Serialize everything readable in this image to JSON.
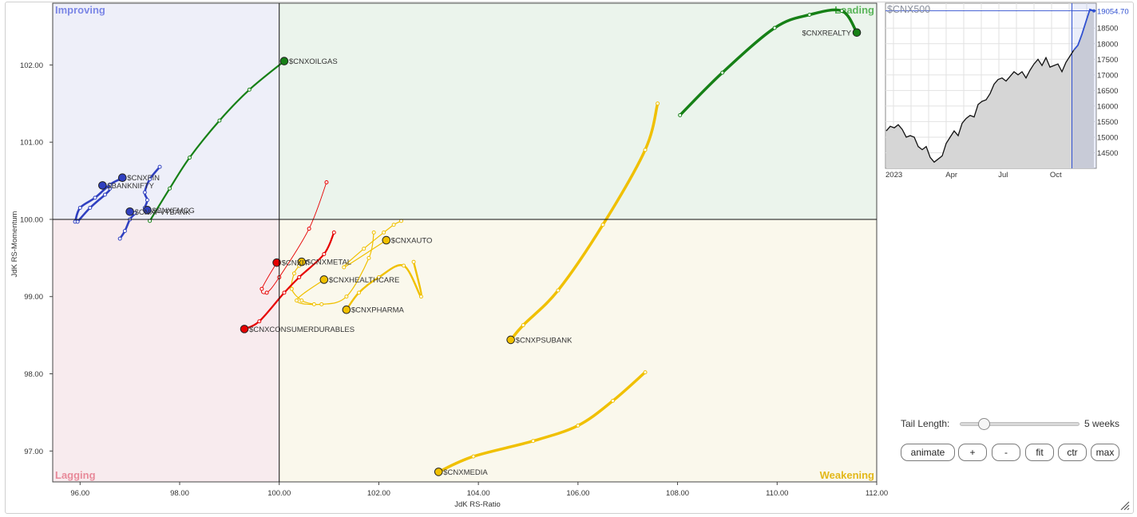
{
  "chart_data": [
    {
      "type": "scatter",
      "xlabel": "JdK RS-Ratio",
      "ylabel": "JdK RS-Momentum",
      "xlim": [
        95.45,
        112.0
      ],
      "ylim": [
        96.6,
        102.8
      ],
      "x_ticks": [
        "96.00",
        "98.00",
        "100.00",
        "102.00",
        "104.00",
        "106.00",
        "108.00",
        "110.00",
        "112.00"
      ],
      "y_ticks": [
        "102.00",
        "101.00",
        "100.00",
        "99.00",
        "98.00",
        "97.00"
      ],
      "quadrants": [
        {
          "name": "Improving",
          "color": "#7b86e6"
        },
        {
          "name": "Leading",
          "color": "#5ab55a"
        },
        {
          "name": "Lagging",
          "color": "#e88a9a"
        },
        {
          "name": "Weakening",
          "color": "#e3b81a"
        }
      ],
      "series": [
        {
          "name": "$CNXREALTY",
          "color": "#168016",
          "width": 3.5,
          "tail": [
            [
              108.05,
              101.35
            ],
            [
              108.9,
              101.9
            ],
            [
              109.95,
              102.48
            ],
            [
              110.65,
              102.65
            ],
            [
              111.3,
              102.7
            ],
            [
              111.6,
              102.42
            ]
          ]
        },
        {
          "name": "$CNXOILGAS",
          "color": "#168016",
          "width": 2.2,
          "tail": [
            [
              97.4,
              99.98
            ],
            [
              97.8,
              100.4
            ],
            [
              98.2,
              100.8
            ],
            [
              98.8,
              101.28
            ],
            [
              99.4,
              101.68
            ],
            [
              100.1,
              102.05
            ]
          ]
        },
        {
          "name": "$CNXPSUBANK",
          "color": "#f0c000",
          "width": 3.5,
          "tail": [
            [
              107.6,
              101.5
            ],
            [
              107.35,
              100.9
            ],
            [
              106.5,
              99.93
            ],
            [
              105.6,
              99.08
            ],
            [
              104.9,
              98.63
            ],
            [
              104.65,
              98.44
            ]
          ]
        },
        {
          "name": "$CNXMEDIA",
          "color": "#f0c000",
          "width": 3.5,
          "tail": [
            [
              107.35,
              98.02
            ],
            [
              106.7,
              97.65
            ],
            [
              106.0,
              97.33
            ],
            [
              105.1,
              97.13
            ],
            [
              103.9,
              96.93
            ],
            [
              103.2,
              96.73
            ]
          ]
        },
        {
          "name": "$CNXAUTO",
          "color": "#f0c000",
          "width": 1.2,
          "tail": [
            [
              102.45,
              99.98
            ],
            [
              102.3,
              99.93
            ],
            [
              102.1,
              99.83
            ],
            [
              101.7,
              99.62
            ],
            [
              101.3,
              99.38
            ],
            [
              102.15,
              99.73
            ]
          ]
        },
        {
          "name": "$CNXHEALTHCARE",
          "color": "#f0c000",
          "width": 1.2,
          "tail": [
            [
              101.9,
              99.83
            ],
            [
              101.8,
              99.5
            ],
            [
              101.35,
              99.0
            ],
            [
              100.85,
              98.9
            ],
            [
              100.35,
              98.95
            ],
            [
              100.9,
              99.22
            ]
          ]
        },
        {
          "name": "$CNXMETAL",
          "color": "#f0c000",
          "width": 1.2,
          "tail": [
            [
              100.7,
              98.9
            ],
            [
              100.45,
              98.95
            ],
            [
              100.25,
              99.1
            ],
            [
              100.3,
              99.3
            ],
            [
              100.4,
              99.4
            ],
            [
              100.45,
              99.45
            ]
          ]
        },
        {
          "name": "$CNXPHARMA",
          "color": "#f0c000",
          "width": 2.4,
          "tail": [
            [
              102.7,
              99.45
            ],
            [
              102.85,
              99.0
            ],
            [
              102.5,
              99.4
            ],
            [
              102.0,
              99.25
            ],
            [
              101.6,
              99.05
            ],
            [
              101.35,
              98.83
            ]
          ]
        },
        {
          "name": "$CNXCONSUMERDURABLES",
          "color": "#e60000",
          "width": 2.2,
          "tail": [
            [
              101.1,
              99.83
            ],
            [
              100.9,
              99.55
            ],
            [
              100.4,
              99.25
            ],
            [
              100.1,
              99.05
            ],
            [
              99.6,
              98.68
            ],
            [
              99.3,
              98.58
            ]
          ]
        },
        {
          "name": "$CNXIT",
          "color": "#e60000",
          "width": 0.9,
          "tail": [
            [
              100.95,
              100.48
            ],
            [
              100.6,
              99.88
            ],
            [
              100.0,
              99.25
            ],
            [
              99.75,
              99.05
            ],
            [
              99.65,
              99.1
            ],
            [
              99.95,
              99.44
            ]
          ]
        },
        {
          "name": "$CNXFIN",
          "color": "#3040c0",
          "width": 2.6,
          "tail": [
            [
              95.9,
              99.97
            ],
            [
              96.0,
              100.15
            ],
            [
              96.3,
              100.28
            ],
            [
              96.6,
              100.45
            ],
            [
              96.8,
              100.52
            ],
            [
              96.85,
              100.54
            ]
          ]
        },
        {
          "name": "$BANKNIFTY",
          "color": "#3040c0",
          "width": 2.6,
          "tail": [
            [
              95.95,
              99.97
            ],
            [
              96.2,
              100.15
            ],
            [
              96.5,
              100.32
            ],
            [
              96.6,
              100.4
            ],
            [
              96.45,
              100.44
            ],
            [
              96.45,
              100.44
            ]
          ]
        },
        {
          "name": "$CNXFMCG",
          "color": "#3040c0",
          "width": 2.6,
          "tail": [
            [
              97.6,
              100.68
            ],
            [
              97.4,
              100.52
            ],
            [
              97.3,
              100.35
            ],
            [
              97.35,
              100.25
            ],
            [
              97.3,
              100.15
            ],
            [
              97.35,
              100.12
            ]
          ]
        },
        {
          "name": "$CNXPVTBANK",
          "color": "#3040c0",
          "width": 2.6,
          "tail": [
            [
              96.8,
              99.75
            ],
            [
              96.9,
              99.85
            ],
            [
              97.0,
              100.0
            ],
            [
              97.1,
              100.08
            ],
            [
              97.0,
              100.1
            ],
            [
              97.0,
              100.1
            ]
          ]
        }
      ]
    },
    {
      "type": "line",
      "title": "$CNX500",
      "last_value_label": "19054.70",
      "y_ticks": [
        "18500",
        "18000",
        "17500",
        "17000",
        "16500",
        "16000",
        "15500",
        "15000",
        "14500"
      ],
      "ylim": [
        14000,
        19300
      ],
      "x_ticks": [
        "2023",
        "Apr",
        "Jul",
        "Oct"
      ],
      "values": [
        15200,
        15350,
        15300,
        15400,
        15250,
        15000,
        15050,
        15000,
        14700,
        14600,
        14700,
        14350,
        14200,
        14300,
        14400,
        14800,
        15000,
        15200,
        15050,
        15450,
        15600,
        15700,
        15650,
        16050,
        16150,
        16200,
        16400,
        16700,
        16850,
        16900,
        16800,
        16950,
        17100,
        17000,
        17100,
        16900,
        17150,
        17350,
        17500,
        17300,
        17550,
        17250,
        17300,
        17350,
        17100,
        17400,
        17600,
        17800,
        17950,
        18300,
        18700,
        19100,
        19054.7
      ]
    }
  ],
  "controls": {
    "tail_length_label": "Tail Length:",
    "tail_length_value": "5 weeks",
    "tail_length_fraction": 0.17,
    "buttons": [
      "animate",
      "+",
      "-",
      "fit",
      "ctr",
      "max"
    ]
  }
}
